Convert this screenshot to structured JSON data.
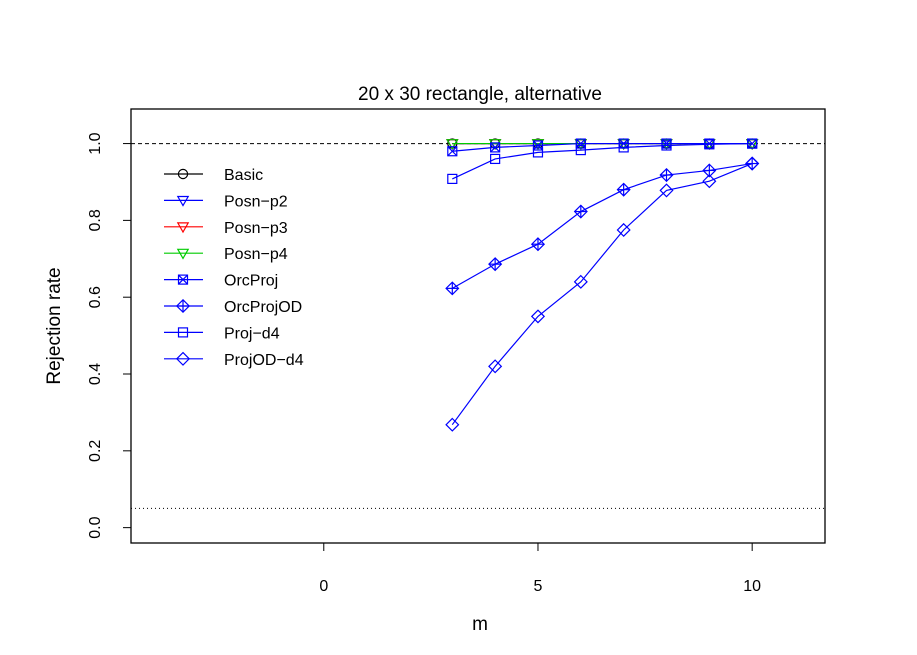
{
  "chart_data": {
    "type": "line",
    "title": "20 x 30 rectangle, alternative",
    "xlabel": "m",
    "ylabel": "Rejection rate",
    "xlim": [
      -4.5,
      11.7
    ],
    "ylim": [
      -0.04,
      1.09
    ],
    "x_ticks": [
      0,
      5,
      10
    ],
    "y_ticks": [
      0.0,
      0.2,
      0.4,
      0.6,
      0.8,
      1.0
    ],
    "x_tick_labels": [
      "0",
      "5",
      "10"
    ],
    "y_tick_labels": [
      "0.0",
      "0.2",
      "0.4",
      "0.6",
      "0.8",
      "1.0"
    ],
    "reference_lines": [
      {
        "y": 1.0,
        "style": "dashed"
      },
      {
        "y": 0.05,
        "style": "dotted"
      }
    ],
    "legend_position": "top-left",
    "x": [
      3,
      4,
      5,
      6,
      7,
      8,
      9,
      10
    ],
    "series": [
      {
        "name": "Basic",
        "color": "#000000",
        "marker": "circle",
        "values": [
          1.0,
          1.0,
          1.0,
          1.0,
          1.0,
          1.0,
          1.0,
          1.0
        ]
      },
      {
        "name": "Posn−p2",
        "color": "#0000ff",
        "marker": "triangle-down",
        "values": [
          1.0,
          1.0,
          1.0,
          1.0,
          1.0,
          1.0,
          1.0,
          1.0
        ]
      },
      {
        "name": "Posn−p3",
        "color": "#ff0000",
        "marker": "triangle-down",
        "values": [
          1.0,
          1.0,
          1.0,
          1.0,
          1.0,
          1.0,
          1.0,
          1.0
        ]
      },
      {
        "name": "Posn−p4",
        "color": "#00cc00",
        "marker": "triangle-down",
        "values": [
          1.0,
          1.0,
          1.0,
          1.0,
          1.0,
          1.0,
          1.0,
          1.0
        ]
      },
      {
        "name": "OrcProj",
        "color": "#0000ff",
        "marker": "square-x",
        "values": [
          0.98,
          0.99,
          0.995,
          1.0,
          1.0,
          1.0,
          1.0,
          1.0
        ]
      },
      {
        "name": "OrcProjOD",
        "color": "#0000ff",
        "marker": "diamond-plus",
        "values": [
          0.623,
          0.686,
          0.738,
          0.823,
          0.88,
          0.918,
          0.93,
          0.948
        ]
      },
      {
        "name": "Proj−d4",
        "color": "#0000ff",
        "marker": "square",
        "values": [
          0.908,
          0.96,
          0.977,
          0.983,
          0.99,
          0.995,
          0.998,
          1.0
        ]
      },
      {
        "name": "ProjOD−d4",
        "color": "#0000ff",
        "marker": "diamond",
        "values": [
          0.268,
          0.42,
          0.55,
          0.64,
          0.775,
          0.878,
          0.902,
          0.948
        ]
      }
    ]
  }
}
